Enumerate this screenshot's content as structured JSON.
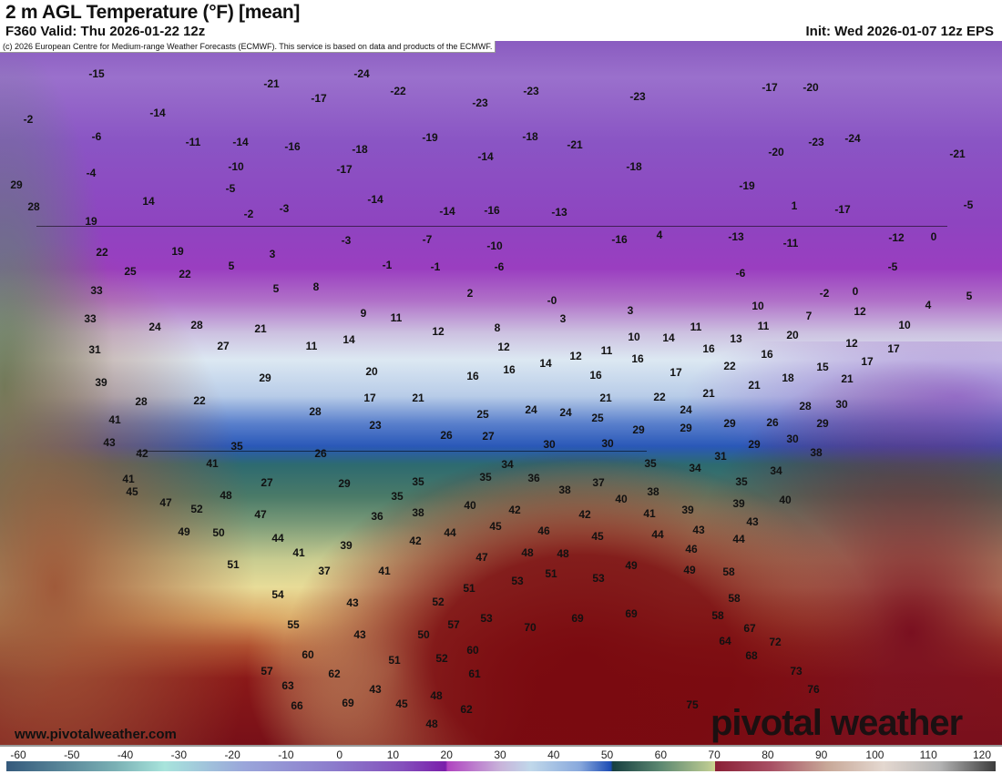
{
  "header": {
    "title": "2 m AGL Temperature (°F) [mean]",
    "valid": "F360 Valid: Thu 2026-01-22 12z",
    "init": "Init: Wed 2026-01-07 12z EPS"
  },
  "map": {
    "credit": "(c) 2026 European Centre for Medium-range Weather Forecasts (ECMWF). This service is based on data and products of the ECMWF.",
    "website": "www.pivotalweather.com",
    "logo": "pivotal weather",
    "units": "°F",
    "labels": [
      "-15",
      "-24",
      "-22",
      "-21",
      "-23",
      "-23",
      "-17",
      "-20",
      "-2",
      "-14",
      "-17",
      "-23",
      "-6",
      "-11",
      "-14",
      "-16",
      "-18",
      "-19",
      "-18",
      "-21",
      "-20",
      "-23",
      "-24",
      "-21",
      "-4",
      "-10",
      "-17",
      "-14",
      "-18",
      "-19",
      "-5",
      "-14",
      "-16",
      "-13",
      "-14",
      "-2",
      "-3",
      "14",
      "29",
      "28",
      "19",
      "1",
      "-17",
      "-5",
      "-16",
      "-13",
      "-11",
      "-12",
      "0",
      "-7",
      "-10",
      "-3",
      "4",
      "22",
      "19",
      "3",
      "25",
      "22",
      "5",
      "-1",
      "-1",
      "-6",
      "8",
      "5",
      "2",
      "-6",
      "-5",
      "-2",
      "0",
      "4",
      "5",
      "33",
      "33",
      "24",
      "28",
      "21",
      "9",
      "11",
      "12",
      "8",
      "-0",
      "3",
      "3",
      "10",
      "12",
      "7",
      "11",
      "10",
      "31",
      "27",
      "11",
      "14",
      "12",
      "12",
      "11",
      "10",
      "14",
      "11",
      "13",
      "16",
      "20",
      "16",
      "12",
      "17",
      "17",
      "15",
      "21",
      "39",
      "29",
      "20",
      "16",
      "16",
      "14",
      "16",
      "16",
      "17",
      "22",
      "18",
      "21",
      "28",
      "22",
      "17",
      "21",
      "25",
      "24",
      "24",
      "21",
      "22",
      "24",
      "21",
      "30",
      "28",
      "29",
      "26",
      "41",
      "43",
      "28",
      "23",
      "26",
      "27",
      "25",
      "29",
      "29",
      "29",
      "30",
      "30",
      "29",
      "30",
      "38",
      "42",
      "35",
      "26",
      "41",
      "31",
      "35",
      "34",
      "34",
      "41",
      "27",
      "29",
      "35",
      "35",
      "34",
      "36",
      "37",
      "35",
      "45",
      "47",
      "48",
      "38",
      "40",
      "38",
      "39",
      "39",
      "40",
      "52",
      "35",
      "40",
      "42",
      "42",
      "41",
      "43",
      "47",
      "36",
      "38",
      "44",
      "45",
      "46",
      "45",
      "44",
      "43",
      "49",
      "50",
      "44",
      "42",
      "46",
      "41",
      "39",
      "47",
      "48",
      "48",
      "44",
      "51",
      "37",
      "41",
      "53",
      "51",
      "49",
      "49",
      "53",
      "58",
      "54",
      "43",
      "52",
      "51",
      "58",
      "55",
      "57",
      "50",
      "53",
      "70",
      "69",
      "69",
      "58",
      "67",
      "60",
      "43",
      "51",
      "52",
      "60",
      "64",
      "68",
      "72",
      "57",
      "62",
      "63",
      "61",
      "73",
      "76",
      "43",
      "45",
      "48",
      "69",
      "66",
      "62",
      "75",
      "48"
    ]
  },
  "colorbar": {
    "ticks": [
      "-60",
      "-50",
      "-40",
      "-30",
      "-20",
      "-10",
      "0",
      "10",
      "20",
      "30",
      "40",
      "50",
      "60",
      "70",
      "80",
      "90",
      "100",
      "110",
      "120"
    ]
  }
}
